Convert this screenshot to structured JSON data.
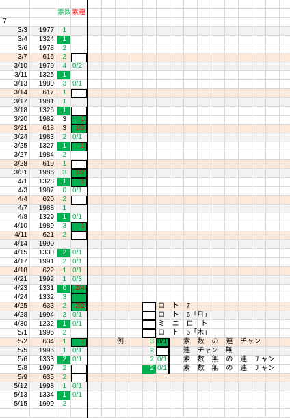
{
  "sheet": {
    "corner_value": "7",
    "prime_count_header": "素数",
    "prime_streak_header": "素連"
  },
  "colors": {
    "prime_green": "#00b050",
    "streak_red": "#ff0000",
    "band_peach": "#fde9d9",
    "band_grey": "#f2f2f2"
  },
  "rows": [
    {
      "date": "3/3",
      "num": "1977",
      "prime": "1",
      "band": "#f2f2f2"
    },
    {
      "date": "3/4",
      "num": "1324",
      "prime": "1",
      "prime_highlight": true
    },
    {
      "date": "3/6",
      "num": "1978",
      "prime": "2"
    },
    {
      "date": "3/7",
      "num": "616",
      "prime": "2",
      "streak_boxed": true,
      "band": "#fde9d9"
    },
    {
      "date": "3/10",
      "num": "1979",
      "prime": "4",
      "streak": "0/2",
      "band": "#f2f2f2"
    },
    {
      "date": "3/11",
      "num": "1325",
      "prime": "1",
      "prime_highlight": true
    },
    {
      "date": "3/13",
      "num": "1980",
      "prime": "3",
      "streak": "0/1"
    },
    {
      "date": "3/14",
      "num": "617",
      "prime": "1",
      "streak_boxed": true,
      "band": "#fde9d9"
    },
    {
      "date": "3/17",
      "num": "1981",
      "prime": "1",
      "band": "#f2f2f2"
    },
    {
      "date": "3/18",
      "num": "1326",
      "prime": "1",
      "prime_highlight": true,
      "streak_boxed": true
    },
    {
      "date": "3/20",
      "num": "1982",
      "prime": "3",
      "prime_color": "#000000",
      "streak": "1",
      "streak_highlight": true
    },
    {
      "date": "3/21",
      "num": "618",
      "prime": "3",
      "prime_color": "#000000",
      "streak": "1/2",
      "streak_highlight": true,
      "band": "#fde9d9"
    },
    {
      "date": "3/24",
      "num": "1983",
      "prime": "2",
      "streak": "0/1",
      "band": "#f2f2f2"
    },
    {
      "date": "3/25",
      "num": "1327",
      "prime": "1",
      "prime_highlight": true,
      "streak": "1",
      "streak_highlight": true
    },
    {
      "date": "3/27",
      "num": "1984",
      "prime": "2"
    },
    {
      "date": "3/28",
      "num": "619",
      "prime": "1",
      "streak_boxed": true,
      "band": "#fde9d9"
    },
    {
      "date": "3/31",
      "num": "1986",
      "prime": "3",
      "streak": "1/2",
      "streak_highlight": true,
      "band": "#f2f2f2"
    },
    {
      "date": "4/1",
      "num": "1328",
      "prime": "1",
      "prime_highlight": true,
      "streak": "1",
      "streak_highlight": true
    },
    {
      "date": "4/3",
      "num": "1987",
      "prime": "0",
      "streak": "0/1"
    },
    {
      "date": "4/4",
      "num": "620",
      "prime": "2",
      "streak_boxed": true,
      "band": "#fde9d9"
    },
    {
      "date": "4/7",
      "num": "1988",
      "prime": "1",
      "band": "#f2f2f2"
    },
    {
      "date": "4/8",
      "num": "1329",
      "prime": "1",
      "prime_highlight": true,
      "streak": "0/1"
    },
    {
      "date": "4/10",
      "num": "1989",
      "prime": "3",
      "streak": "1",
      "streak_highlight": true
    },
    {
      "date": "4/11",
      "num": "621",
      "prime": "2",
      "streak_boxed": true,
      "band": "#fde9d9"
    },
    {
      "date": "4/14",
      "num": "1990",
      "band": "#f2f2f2"
    },
    {
      "date": "4/15",
      "num": "1330",
      "prime": "2",
      "prime_highlight": true,
      "streak": "0/1"
    },
    {
      "date": "4/17",
      "num": "1991",
      "prime": "2",
      "streak": "0/1"
    },
    {
      "date": "4/18",
      "num": "622",
      "prime": "1",
      "streak": "0/1",
      "band": "#fde9d9"
    },
    {
      "date": "4/21",
      "num": "1992",
      "prime": "1",
      "streak": "0/3",
      "band": "#f2f2f2"
    },
    {
      "date": "4/23",
      "num": "1331",
      "prime": "0",
      "prime_highlight": true,
      "streak": "2/4",
      "streak_highlight": true
    },
    {
      "date": "4/24",
      "num": "1332",
      "prime": "3",
      "streak_highlight": true
    },
    {
      "date": "4/25",
      "num": "633",
      "prime": "2",
      "streak": "2/2",
      "streak_highlight": true,
      "band": "#fde9d9"
    },
    {
      "date": "4/28",
      "num": "1994",
      "prime": "2",
      "streak": "0/1",
      "band": "#f2f2f2"
    },
    {
      "date": "4/30",
      "num": "1232",
      "prime": "1",
      "prime_highlight": true,
      "streak": "0/1"
    },
    {
      "date": "5/1",
      "num": "1995",
      "prime": "2"
    },
    {
      "date": "5/2",
      "num": "634",
      "prime": "1",
      "streak": "1",
      "streak_highlight": true,
      "band": "#fde9d9"
    },
    {
      "date": "5/5",
      "num": "1996",
      "prime": "1",
      "streak": "0/1",
      "band": "#f2f2f2"
    },
    {
      "date": "5/6",
      "num": "1333",
      "prime": "2",
      "prime_highlight": true,
      "streak": "0/1"
    },
    {
      "date": "5/8",
      "num": "1997",
      "prime": "2",
      "streak_boxed": true
    },
    {
      "date": "5/9",
      "num": "635",
      "prime": "2",
      "streak_boxed": true,
      "band": "#fde9d9"
    },
    {
      "date": "5/12",
      "num": "1998",
      "prime": "1",
      "streak": "0/1",
      "band": "#f2f2f2"
    },
    {
      "date": "5/13",
      "num": "1334",
      "prime": "1",
      "prime_highlight": true,
      "streak": "0/1"
    },
    {
      "date": "5/15",
      "num": "1999",
      "prime": "2"
    }
  ],
  "legend": {
    "lottery_types": [
      "ロ ト 7",
      "ロ ト 6「月」",
      "ミ ニ ロ ト",
      "ロ ト 6「木」"
    ],
    "example_label": "例",
    "examples": [
      {
        "count": "3",
        "streak": "0/1",
        "streak_highlight": true,
        "label": "素 数 の 連 チャン"
      },
      {
        "count": "2",
        "streak_boxed": true,
        "label": "連 チャン 無"
      },
      {
        "count": "2",
        "streak": "0/1",
        "label": "素 数 無 の 連 チャン"
      },
      {
        "count": "2",
        "count_highlight": true,
        "streak": "0/1",
        "label": "素 数 無 の 連 チャン"
      }
    ]
  }
}
